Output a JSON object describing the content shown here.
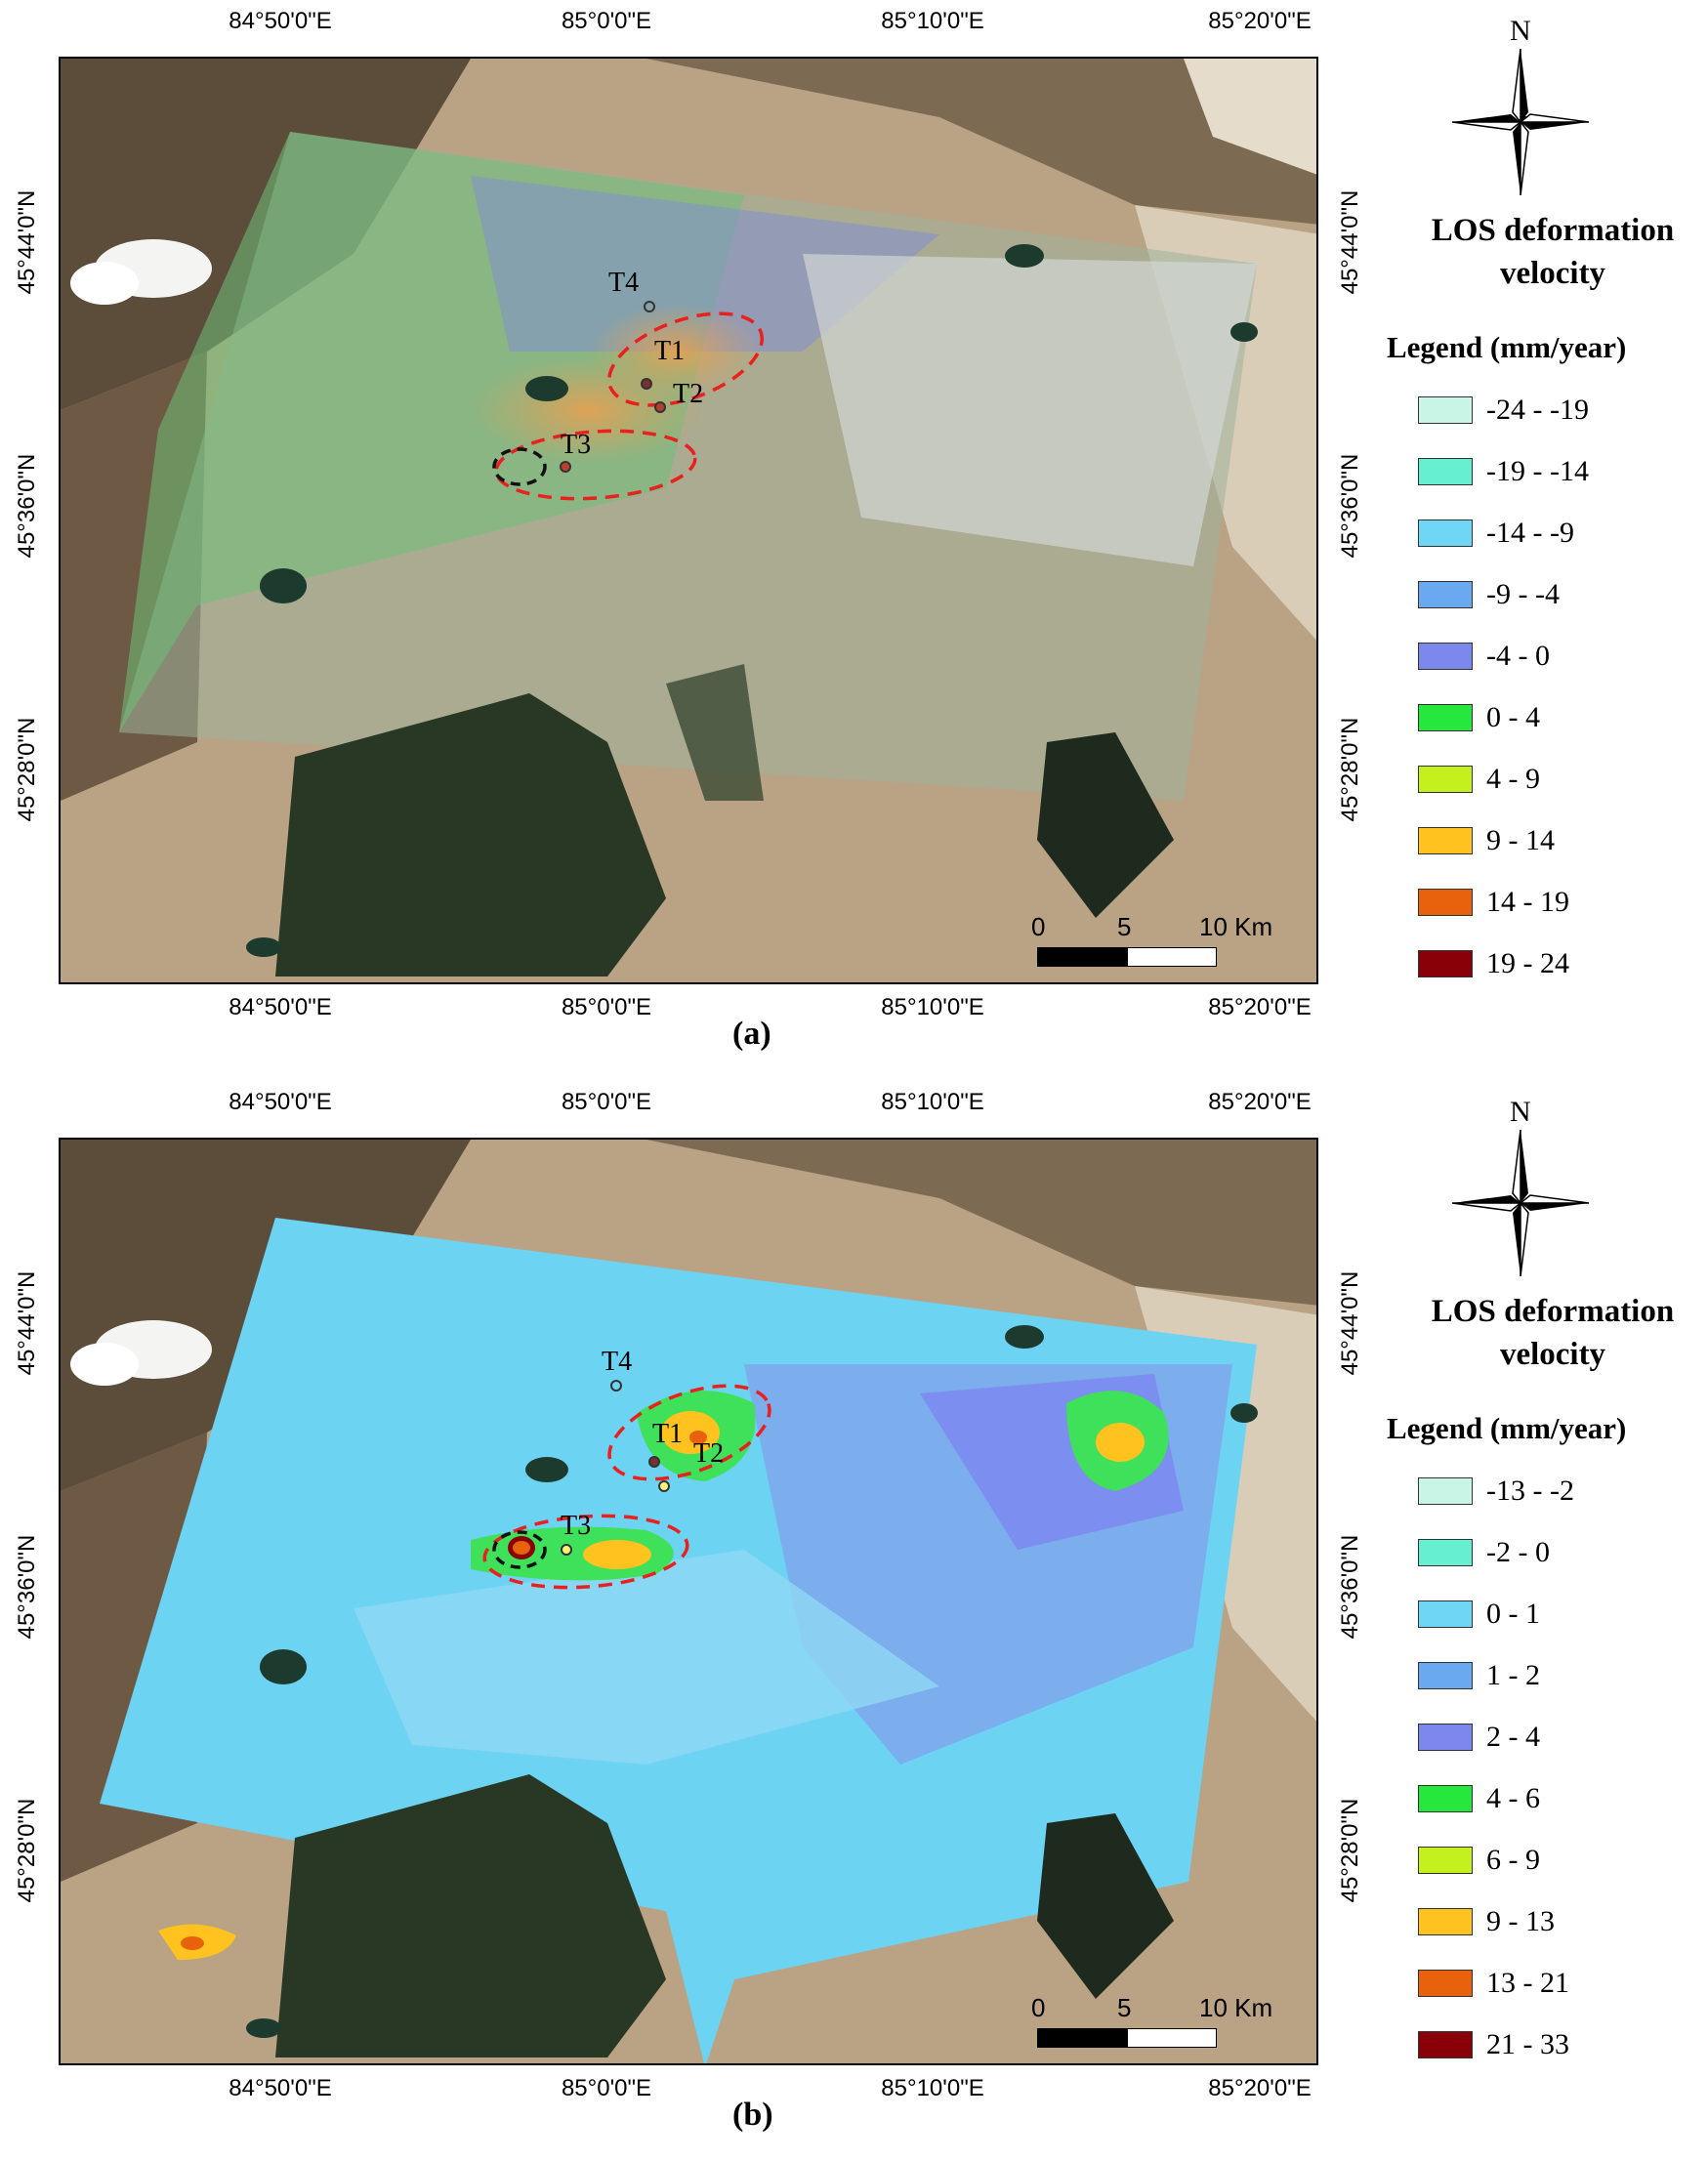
{
  "panels": [
    {
      "id": "a",
      "caption": "(a)",
      "x_ticks": [
        "84°50'0\"E",
        "85°0'0\"E",
        "85°10'0\"E",
        "85°20'0\"E"
      ],
      "y_ticks": [
        "45°44'0\"N",
        "45°36'0\"N",
        "45°28'0\"N"
      ],
      "north": "N",
      "title_line1": "LOS deformation",
      "title_line2": "velocity",
      "legend_heading": "Legend (mm/year)",
      "legend": [
        {
          "label": "-24 - -19",
          "color": "#c8f5e6"
        },
        {
          "label": "-19 - -14",
          "color": "#66efd0"
        },
        {
          "label": "-14 - -9",
          "color": "#6fd6f5"
        },
        {
          "label": "-9 - -4",
          "color": "#6aa9f0"
        },
        {
          "label": "-4 - 0",
          "color": "#7c88ee"
        },
        {
          "label": "0 - 4",
          "color": "#26e83c"
        },
        {
          "label": "4 - 9",
          "color": "#c4f01e"
        },
        {
          "label": "9 - 14",
          "color": "#ffc21e"
        },
        {
          "label": "14 - 19",
          "color": "#e8620e"
        },
        {
          "label": "19 - 24",
          "color": "#8a0008"
        }
      ],
      "targets": [
        "T1",
        "T2",
        "T3",
        "T4"
      ],
      "scale": [
        "0",
        "5",
        "10 Km"
      ]
    },
    {
      "id": "b",
      "caption": "(b)",
      "x_ticks": [
        "84°50'0\"E",
        "85°0'0\"E",
        "85°10'0\"E",
        "85°20'0\"E"
      ],
      "y_ticks": [
        "45°44'0\"N",
        "45°36'0\"N",
        "45°28'0\"N"
      ],
      "north": "N",
      "title_line1": "LOS deformation",
      "title_line2": "velocity",
      "legend_heading": "Legend (mm/year)",
      "legend": [
        {
          "label": "-13 - -2",
          "color": "#c8f5e6"
        },
        {
          "label": "-2 - 0",
          "color": "#66efd0"
        },
        {
          "label": "0 - 1",
          "color": "#6fd6f5"
        },
        {
          "label": "1 - 2",
          "color": "#6aa9f0"
        },
        {
          "label": "2 - 4",
          "color": "#7c88ee"
        },
        {
          "label": "4 - 6",
          "color": "#26e83c"
        },
        {
          "label": "6 - 9",
          "color": "#c4f01e"
        },
        {
          "label": "9 - 13",
          "color": "#ffc21e"
        },
        {
          "label": "13 - 21",
          "color": "#e8620e"
        },
        {
          "label": "21 - 33",
          "color": "#8a0008"
        }
      ],
      "targets": [
        "T1",
        "T2",
        "T3",
        "T4"
      ],
      "scale": [
        "0",
        "5",
        "10 Km"
      ]
    }
  ]
}
